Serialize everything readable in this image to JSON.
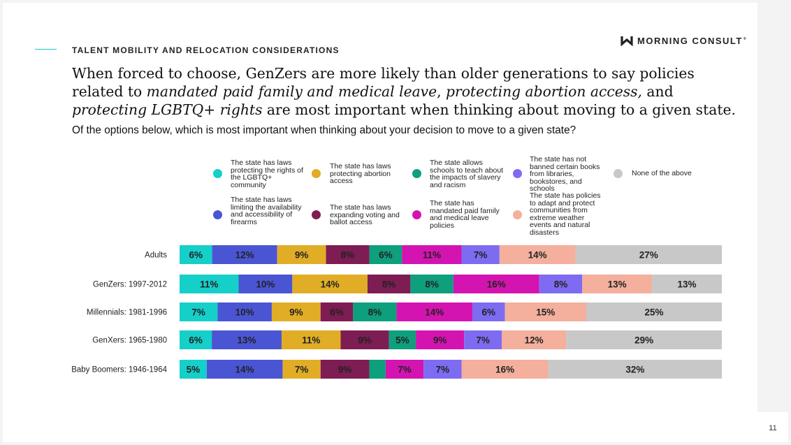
{
  "section_label": "TALENT MOBILITY AND RELOCATION CONSIDERATIONS",
  "brand": {
    "name": "MORNING CONSULT",
    "reg": "®",
    "logo_icon": "morning-consult-chevron-logo"
  },
  "headline": {
    "p1": "When forced to choose, GenZers are more likely than older generations to say policies related to ",
    "em1": "mandated paid family and medical leave",
    "p2": ", ",
    "em2": "protecting abortion access,",
    "p3": " and ",
    "em3": "protecting LGBTQ+ rights",
    "p4": " are most important when thinking about moving to a given state."
  },
  "question": "Of the options below, which is most important when thinking about your decision to move to a given state?",
  "page_number": "11",
  "chart_data": {
    "type": "bar",
    "orientation": "horizontal",
    "stacked": true,
    "legend_position": "top",
    "grid": false,
    "xlim": [
      0,
      100
    ],
    "categories": [
      "Adults",
      "GenZers: 1997-2012",
      "Millennials: 1981-1996",
      "GenXers: 1965-1980",
      "Baby Boomers: 1946-1964"
    ],
    "series": [
      {
        "name": "The state has laws protecting the rights of the LGBTQ+ community",
        "color": "#15cfc9",
        "values": [
          6,
          11,
          7,
          6,
          5
        ],
        "labels": [
          "6%",
          "11%",
          "7%",
          "6%",
          "5%"
        ]
      },
      {
        "name": "The state has laws limiting the availability and accessibility of firearms",
        "color": "#4a55d4",
        "values": [
          12,
          10,
          10,
          13,
          14
        ],
        "labels": [
          "12%",
          "10%",
          "10%",
          "13%",
          "14%"
        ]
      },
      {
        "name": "The state has laws protecting abortion access",
        "color": "#e1ad26",
        "values": [
          9,
          14,
          9,
          11,
          7
        ],
        "labels": [
          "9%",
          "14%",
          "9%",
          "11%",
          "7%"
        ]
      },
      {
        "name": "The state has laws expanding voting and ballot access",
        "color": "#7e1c54",
        "values": [
          8,
          8,
          6,
          9,
          9
        ],
        "labels": [
          "8%",
          "8%",
          "6%",
          "9%",
          "9%"
        ]
      },
      {
        "name": "The state allows schools to teach about the impacts of slavery and racism",
        "color": "#0e9f7d",
        "values": [
          6,
          8,
          8,
          5,
          3
        ],
        "labels": [
          "6%",
          "8%",
          "8%",
          "5%",
          ""
        ]
      },
      {
        "name": "The state has mandated paid family and medical leave policies",
        "color": "#d414b1",
        "values": [
          11,
          16,
          14,
          9,
          7
        ],
        "labels": [
          "11%",
          "16%",
          "14%",
          "9%",
          "7%"
        ]
      },
      {
        "name": "The state has not banned certain books from libraries, bookstores, and schools",
        "color": "#7d6cf2",
        "values": [
          7,
          8,
          6,
          7,
          7
        ],
        "labels": [
          "7%",
          "8%",
          "6%",
          "7%",
          "7%"
        ]
      },
      {
        "name": "The state has policies to adapt and protect communities from extreme weather events and natural disasters",
        "color": "#f4af9d",
        "values": [
          14,
          13,
          15,
          12,
          16
        ],
        "labels": [
          "14%",
          "13%",
          "15%",
          "12%",
          "16%"
        ]
      },
      {
        "name": "None of the above",
        "color": "#c8c8c8",
        "values": [
          27,
          13,
          25,
          29,
          32
        ],
        "labels": [
          "27%",
          "13%",
          "25%",
          "29%",
          "32%"
        ]
      }
    ]
  }
}
